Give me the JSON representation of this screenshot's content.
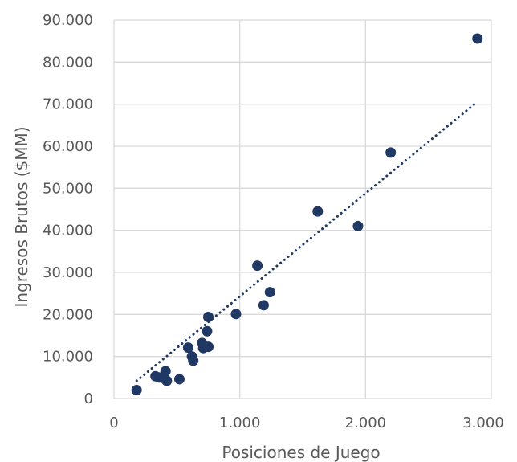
{
  "chart_data": {
    "type": "scatter",
    "title": "",
    "xlabel": "Posiciones de Juego",
    "ylabel": "Ingresos Brutos ($MM)",
    "xlim": [
      0,
      3000
    ],
    "ylim": [
      0,
      90000
    ],
    "x_ticks": [
      0,
      1000,
      2000,
      3000
    ],
    "x_tick_labels": [
      "0",
      "1.000",
      "2.000",
      "3.000"
    ],
    "y_ticks": [
      0,
      10000,
      20000,
      30000,
      40000,
      50000,
      60000,
      70000,
      80000,
      90000
    ],
    "y_tick_labels": [
      "0",
      "10.000",
      "20.000",
      "30.000",
      "40.000",
      "50.000",
      "60.000",
      "70.000",
      "80.000",
      "90.000"
    ],
    "grid": true,
    "legend": "none",
    "series": [
      {
        "color": "#1f3864",
        "points": [
          [
            180,
            2000
          ],
          [
            330,
            5300
          ],
          [
            360,
            5000
          ],
          [
            410,
            6500
          ],
          [
            410,
            4500
          ],
          [
            420,
            4200
          ],
          [
            520,
            4600
          ],
          [
            590,
            12100
          ],
          [
            620,
            10000
          ],
          [
            630,
            9000
          ],
          [
            700,
            13200
          ],
          [
            710,
            12000
          ],
          [
            740,
            16000
          ],
          [
            750,
            12300
          ],
          [
            750,
            19400
          ],
          [
            970,
            20100
          ],
          [
            1140,
            31600
          ],
          [
            1190,
            22200
          ],
          [
            1240,
            25300
          ],
          [
            1620,
            44500
          ],
          [
            1940,
            41000
          ],
          [
            2200,
            58500
          ],
          [
            2890,
            85600
          ]
        ]
      }
    ],
    "trendline": {
      "type": "linear",
      "style": "dotted",
      "color": "#1f3864",
      "x": [
        180,
        2890
      ],
      "y": [
        4200,
        70600
      ]
    }
  }
}
